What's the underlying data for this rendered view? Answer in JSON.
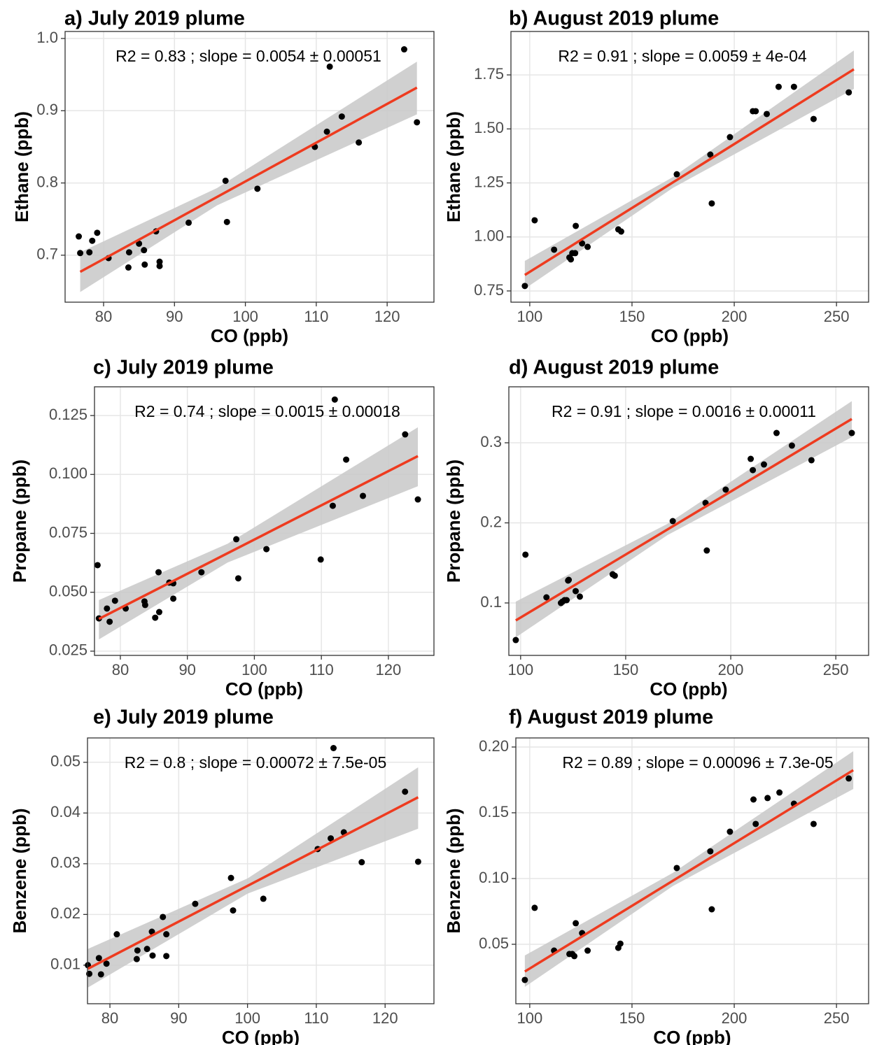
{
  "chart_data": [
    {
      "type": "scatter",
      "title": "a) July 2019 plume",
      "annotation": "R2 = 0.83 ; slope = 0.0054 ± 0.00051",
      "x_label": "CO (ppb)",
      "y_label": "Ethane (ppb)",
      "x": [
        76.5,
        76.7,
        78.0,
        78.4,
        79.1,
        80.7,
        83.6,
        83.5,
        85.0,
        85.7,
        85.8,
        87.4,
        87.9,
        87.9,
        92.0,
        97.2,
        97.4,
        101.7,
        109.8,
        111.5,
        111.9,
        113.6,
        116.0,
        122.4,
        124.2
      ],
      "values": [
        0.726,
        0.703,
        0.704,
        0.72,
        0.731,
        0.696,
        0.704,
        0.683,
        0.716,
        0.707,
        0.687,
        0.733,
        0.691,
        0.685,
        0.745,
        0.803,
        0.746,
        0.792,
        0.85,
        0.871,
        0.961,
        0.892,
        0.856,
        0.985,
        0.884
      ],
      "color": "#000000",
      "fit": {
        "x": [
          76.7,
          124.2
        ],
        "values": [
          0.677,
          0.932
        ],
        "color": "#ee3b1f"
      },
      "band": {
        "x": [
          76.7,
          96,
          124.2
        ],
        "lower": [
          0.649,
          0.769,
          0.895
        ],
        "upper": [
          0.704,
          0.793,
          0.968
        ],
        "color": "#c8c8c8"
      },
      "xlim": [
        74.57,
        126.6
      ],
      "ylim": [
        0.635,
        1.0097
      ],
      "xticks": [
        80,
        90,
        100,
        110,
        120
      ],
      "yticks": [
        0.7,
        0.8,
        0.9,
        {
          "value": 1.0,
          "label": "1.0"
        }
      ],
      "grid": true
    },
    {
      "type": "scatter",
      "title": "b) August 2019 plume",
      "annotation": "R2 = 0.91 ; slope = 0.0059 ± 4e-04",
      "x_label": "CO (ppb)",
      "y_label": "Ethane (ppb)",
      "x": [
        97.6,
        102.4,
        111.9,
        119.4,
        120.1,
        120.8,
        122.2,
        122.5,
        125.6,
        128.3,
        143.3,
        144.7,
        171.9,
        188.3,
        189.0,
        197.9,
        209.1,
        210.5,
        215.9,
        221.7,
        229.2,
        238.8,
        256.0
      ],
      "values": [
        0.773,
        1.077,
        0.941,
        0.905,
        0.896,
        0.925,
        0.925,
        1.051,
        0.97,
        0.954,
        1.035,
        1.025,
        1.29,
        1.381,
        1.155,
        1.462,
        1.582,
        1.582,
        1.569,
        1.695,
        1.695,
        1.546,
        1.669
      ],
      "color": "#000000",
      "fit": {
        "x": [
          97.6,
          258.5
        ],
        "values": [
          0.824,
          1.776
        ],
        "color": "#ee3b1f"
      },
      "band": {
        "x": [
          97.6,
          170,
          258.5
        ],
        "lower": [
          0.76,
          1.227,
          1.685
        ],
        "upper": [
          0.889,
          1.277,
          1.863
        ],
        "color": "#c8c8c8"
      },
      "xlim": [
        90.8,
        265.7
      ],
      "ylim": [
        0.698,
        1.951
      ],
      "xticks": [
        100,
        150,
        200,
        250
      ],
      "yticks": [
        0.75,
        {
          "value": 1,
          "label": "1.00"
        },
        1.25,
        {
          "value": 1.5,
          "label": "1.50"
        },
        1.75
      ],
      "grid": true
    },
    {
      "type": "scatter",
      "title": "c) July 2019 plume",
      "annotation": "R2 = 0.74 ; slope = 0.0015 ± 0.00018",
      "x_label": "CO (ppb)",
      "y_label": "Propane (ppb)",
      "x": [
        76.6,
        76.8,
        78.0,
        78.4,
        79.2,
        80.8,
        83.6,
        83.7,
        85.2,
        85.7,
        85.8,
        87.3,
        87.9,
        87.9,
        92.1,
        97.3,
        97.6,
        101.8,
        109.9,
        111.7,
        112.0,
        113.7,
        116.2,
        122.5,
        124.4
      ],
      "values": [
        0.0615,
        0.0389,
        0.0431,
        0.0375,
        0.0464,
        0.0431,
        0.0461,
        0.0446,
        0.0392,
        0.0585,
        0.0416,
        0.0541,
        0.0538,
        0.0473,
        0.0585,
        0.0725,
        0.0559,
        0.0683,
        0.0639,
        0.0867,
        0.1318,
        0.1063,
        0.0909,
        0.117,
        0.0894
      ],
      "color": "#000000",
      "fit": {
        "x": [
          76.8,
          124.4
        ],
        "values": [
          0.0387,
          0.1078
        ],
        "color": "#ee3b1f"
      },
      "band": {
        "x": [
          76.8,
          96,
          124.4
        ],
        "lower": [
          0.03,
          0.0626,
          0.095
        ],
        "upper": [
          0.0467,
          0.0706,
          0.12
        ],
        "color": "#c8c8c8"
      },
      "xlim": [
        76.14,
        126.8
      ],
      "ylim": [
        0.0232,
        0.1372
      ],
      "xticks": [
        80,
        90,
        100,
        110,
        120
      ],
      "yticks": [
        0.025,
        {
          "value": 0.05,
          "label": "0.050"
        },
        0.075,
        {
          "value": 0.1,
          "label": "0.100"
        },
        0.125
      ],
      "grid": true
    },
    {
      "type": "scatter",
      "title": "d) August 2019 plume",
      "annotation": "R2 = 0.91 ; slope = 0.0016 ± 0.00011",
      "x_label": "CO (ppb)",
      "y_label": "Propane (ppb)",
      "x": [
        97.7,
        102.3,
        112.3,
        119.2,
        119.9,
        120.9,
        121.9,
        122.6,
        122.9,
        126.2,
        128.2,
        143.8,
        144.8,
        172.4,
        188.6,
        188.0,
        197.6,
        209.5,
        210.5,
        215.8,
        221.8,
        229.1,
        238.4,
        257.6
      ],
      "values": [
        0.0537,
        0.1603,
        0.107,
        0.1,
        0.1017,
        0.1035,
        0.1035,
        0.128,
        0.1288,
        0.1148,
        0.1079,
        0.1358,
        0.134,
        0.2022,
        0.1655,
        0.2249,
        0.2415,
        0.2799,
        0.2659,
        0.2729,
        0.3122,
        0.2965,
        0.2782,
        0.3122
      ],
      "color": "#000000",
      "fit": {
        "x": [
          97.7,
          257.6
        ],
        "values": [
          0.0782,
          0.3297
        ],
        "color": "#ee3b1f"
      },
      "band": {
        "x": [
          97.7,
          170,
          257.6
        ],
        "lower": [
          0.057,
          0.1849,
          0.307
        ],
        "upper": [
          0.1017,
          0.1989,
          0.352
        ],
        "color": "#c8c8c8"
      },
      "xlim": [
        94.4,
        265.6
      ],
      "ylim": [
        0.0345,
        0.3699
      ],
      "xticks": [
        100,
        150,
        200,
        250
      ],
      "yticks": [
        0.1,
        0.2,
        0.3
      ],
      "grid": true
    },
    {
      "type": "scatter",
      "title": "e) July 2019 plume",
      "annotation": "R2 = 0.8 ; slope = 0.00072 ± 7.5e-05",
      "x_label": "CO (ppb)",
      "y_label": "Benzene (ppb)",
      "x": [
        76.8,
        77.0,
        78.4,
        78.7,
        79.5,
        81.0,
        83.9,
        84.0,
        85.4,
        86.1,
        86.2,
        87.7,
        88.2,
        88.2,
        92.4,
        97.6,
        97.9,
        102.3,
        110.2,
        112.1,
        112.5,
        114.0,
        116.6,
        122.9,
        124.8
      ],
      "values": [
        0.01,
        0.0083,
        0.0114,
        0.0082,
        0.0103,
        0.0161,
        0.0112,
        0.0129,
        0.0132,
        0.0166,
        0.0119,
        0.0195,
        0.0161,
        0.0118,
        0.0221,
        0.0272,
        0.0208,
        0.0231,
        0.0329,
        0.035,
        0.0528,
        0.0362,
        0.0303,
        0.0442,
        0.0304
      ],
      "color": "#000000",
      "fit": {
        "x": [
          76.8,
          124.8
        ],
        "values": [
          0.0093,
          0.0431
        ],
        "color": "#ee3b1f"
      },
      "band": {
        "x": [
          76.8,
          100,
          124.8
        ],
        "lower": [
          0.0056,
          0.0241,
          0.0369
        ],
        "upper": [
          0.0132,
          0.0271,
          0.049
        ],
        "color": "#c8c8c8"
      },
      "xlim": [
        76.74,
        127.1
      ],
      "ylim": [
        0.0024,
        0.0548
      ],
      "xticks": [
        80,
        90,
        100,
        110,
        120
      ],
      "yticks": [
        0.01,
        0.02,
        0.03,
        0.04,
        0.05
      ],
      "grid": true
    },
    {
      "type": "scatter",
      "title": "f) August 2019 plume",
      "annotation": "R2 = 0.89 ; slope = 0.00096 ± 7.3e-05",
      "x_label": "CO (ppb)",
      "y_label": "Benzene (ppb)",
      "x": [
        97.6,
        102.4,
        111.9,
        119.4,
        120.8,
        121.8,
        122.5,
        125.6,
        128.3,
        143.3,
        144.3,
        171.9,
        188.3,
        189.0,
        197.9,
        209.4,
        210.5,
        216.3,
        222.1,
        229.2,
        238.8,
        256.0
      ],
      "values": [
        0.0229,
        0.0777,
        0.0452,
        0.0426,
        0.0426,
        0.041,
        0.066,
        0.0585,
        0.0452,
        0.0473,
        0.0505,
        0.108,
        0.1207,
        0.0766,
        0.1356,
        0.1601,
        0.1415,
        0.1612,
        0.1654,
        0.1569,
        0.1415,
        0.1761
      ],
      "color": "#000000",
      "fit": {
        "x": [
          97.6,
          258.2
        ],
        "values": [
          0.0293,
          0.1824
        ],
        "color": "#ee3b1f"
      },
      "band": {
        "x": [
          97.6,
          170,
          258.2
        ],
        "lower": [
          0.0176,
          0.0943,
          0.1681
        ],
        "upper": [
          0.0415,
          0.1043,
          0.1968
        ],
        "color": "#c8c8c8"
      },
      "xlim": [
        93.2,
        265.7
      ],
      "ylim": [
        0.0048,
        0.2069
      ],
      "xticks": [
        100,
        150,
        200,
        250
      ],
      "yticks": [
        0.05,
        {
          "value": 0.1,
          "label": "0.10"
        },
        0.15,
        {
          "value": 0.2,
          "label": "0.20"
        }
      ],
      "grid": true
    }
  ]
}
